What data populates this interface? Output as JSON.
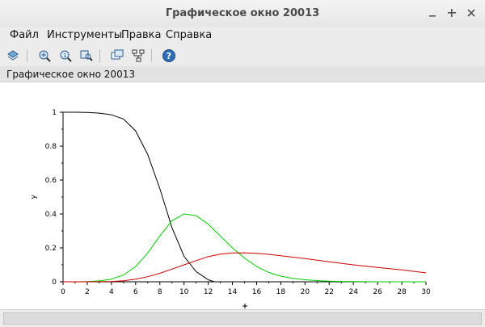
{
  "window": {
    "title": "Графическое окно 20013"
  },
  "menu": {
    "file": "Файл",
    "tools": "Инструменты",
    "edit": "Правка",
    "help": "Справка"
  },
  "toolbar": {
    "icons": [
      "rotate-icon",
      "zoom-grid-icon",
      "zoom-in-icon",
      "zoom-out-icon",
      "datatip-icon",
      "tree-icon",
      "help-icon"
    ]
  },
  "figure": {
    "label": "Графическое окно 20013"
  },
  "colors": {
    "black": "#000000",
    "green": "#00cc00",
    "red": "#cc0000"
  },
  "chart_data": {
    "type": "line",
    "xlabel": "",
    "ylabel": "y",
    "xlim": [
      0,
      30
    ],
    "ylim": [
      0,
      1
    ],
    "xticks": [
      "0",
      "2",
      "4",
      "6",
      "8",
      "10",
      "12",
      "14",
      "16",
      "18",
      "20",
      "22",
      "24",
      "26",
      "28",
      "30"
    ],
    "yticks": [
      "0",
      "0.2",
      "0.4",
      "0.6",
      "0.8",
      "1"
    ],
    "grid": false,
    "series": [
      {
        "color": "#000000",
        "x": [
          0,
          1,
          2,
          3,
          4,
          5,
          6,
          7,
          8,
          9,
          10,
          11,
          12,
          12.5
        ],
        "y": [
          1.0,
          1.0,
          0.999,
          0.995,
          0.985,
          0.96,
          0.89,
          0.75,
          0.55,
          0.32,
          0.15,
          0.06,
          0.012,
          0.0
        ]
      },
      {
        "color": "#00cc00",
        "x": [
          0,
          1,
          2,
          3,
          4,
          5,
          6,
          7,
          8,
          9,
          10,
          11,
          12,
          13,
          14,
          15,
          16,
          17,
          18,
          19,
          20,
          21,
          22,
          23,
          24,
          25,
          26,
          27,
          28,
          29,
          30
        ],
        "y": [
          0.0,
          0.0,
          0.001,
          0.005,
          0.015,
          0.04,
          0.09,
          0.17,
          0.27,
          0.36,
          0.4,
          0.39,
          0.34,
          0.27,
          0.2,
          0.14,
          0.09,
          0.055,
          0.033,
          0.02,
          0.012,
          0.007,
          0.004,
          0.002,
          0.001,
          0.0005,
          0.0,
          0.0,
          0.0,
          0.0,
          0.0
        ]
      },
      {
        "color": "#cc0000",
        "x": [
          0,
          2,
          4,
          5,
          6,
          7,
          8,
          9,
          10,
          11,
          12,
          13,
          14,
          15,
          16,
          17,
          18,
          20,
          22,
          24,
          26,
          28,
          30
        ],
        "y": [
          0.0,
          0.0,
          0.002,
          0.006,
          0.015,
          0.03,
          0.05,
          0.075,
          0.1,
          0.125,
          0.148,
          0.163,
          0.17,
          0.171,
          0.168,
          0.162,
          0.154,
          0.137,
          0.118,
          0.1,
          0.085,
          0.07,
          0.053
        ]
      }
    ]
  }
}
